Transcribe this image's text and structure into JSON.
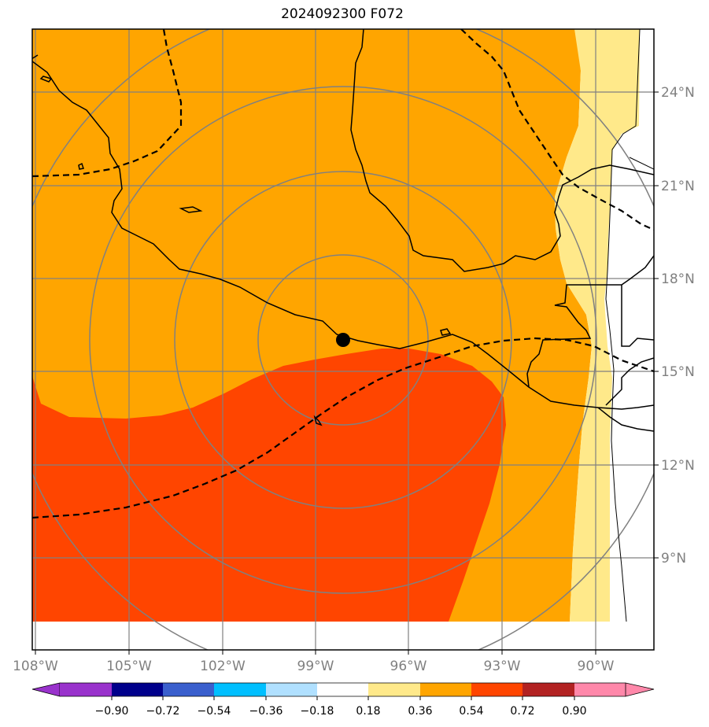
{
  "title": "2024092300 F072",
  "map": {
    "lon_labels": [
      "108°W",
      "105°W",
      "102°W",
      "99°W",
      "96°W",
      "93°W",
      "90°W"
    ],
    "lat_labels": [
      "24°N",
      "21°N",
      "18°N",
      "15°N",
      "12°N",
      "9°N"
    ],
    "center_marker": "storm-center",
    "colors": {
      "band_036_054": "#ffa500",
      "band_054_072": "#ff4500",
      "band_018_036": "#ffe98a",
      "gridline": "#808080",
      "coast": "#000000"
    }
  },
  "colorbar": {
    "ticks": [
      "−0.90",
      "−0.72",
      "−0.54",
      "−0.36",
      "−0.18",
      "0.18",
      "0.36",
      "0.54",
      "0.72",
      "0.90"
    ],
    "colors": [
      "#9932cc",
      "#00008b",
      "#3a5fcd",
      "#00bfff",
      "#b0e0ff",
      "#ffffff",
      "#ffe98a",
      "#ffa500",
      "#ff4500",
      "#b22222",
      "#ff88aa",
      "#ff88aa"
    ],
    "under_color": "#9932cc",
    "over_color": "#ff88aa"
  }
}
